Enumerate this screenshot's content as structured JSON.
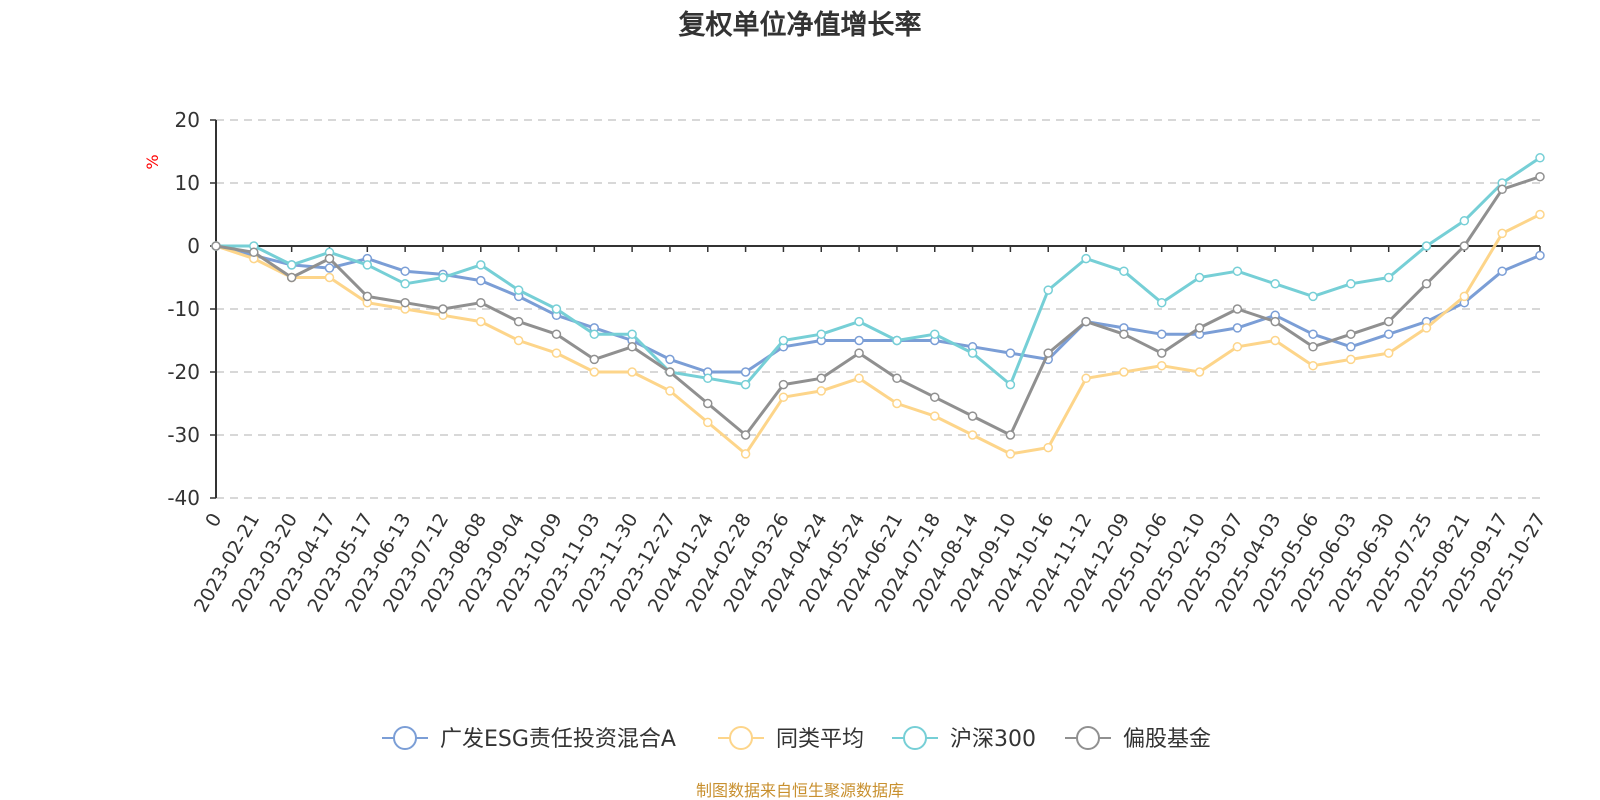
{
  "chart_data": {
    "type": "line",
    "title": "复权单位净值增长率",
    "ylabel": "%",
    "ylim": [
      -40,
      20
    ],
    "yticks": [
      -40,
      -30,
      -20,
      -10,
      0,
      10,
      20
    ],
    "x_tick_labels": [
      "0",
      "2023-02-21",
      "2023-03-20",
      "2023-04-17",
      "2023-05-17",
      "2023-06-13",
      "2023-07-12",
      "2023-08-08",
      "2023-09-04",
      "2023-10-09",
      "2023-11-03",
      "2023-11-30",
      "2023-12-27",
      "2024-01-24",
      "2024-02-28",
      "2024-03-26",
      "2024-04-24",
      "2024-05-24",
      "2024-06-21",
      "2024-07-18",
      "2024-08-14",
      "2024-09-10",
      "2024-10-16",
      "2024-11-12",
      "2024-12-09",
      "2025-01-06",
      "2025-02-10",
      "2025-03-07",
      "2025-04-03",
      "2025-05-06",
      "2025-06-03",
      "2025-06-30",
      "2025-07-25",
      "2025-08-21",
      "2025-09-17",
      "2025-10-27"
    ],
    "grid": true,
    "legend_position": "bottom",
    "series": [
      {
        "name": "广发ESG责任投资混合A",
        "color": "#7b9ed6",
        "values": [
          0,
          -1.5,
          -3,
          -3.5,
          -2,
          -4,
          -4.5,
          -5.5,
          -8,
          -11,
          -13,
          -15,
          -18,
          -20,
          -20,
          -16,
          -15,
          -15,
          -15,
          -15,
          -16,
          -17,
          -18,
          -12,
          -13,
          -14,
          -14,
          -13,
          -11,
          -14,
          -16,
          -14,
          -12,
          -9,
          -4,
          -1.5
        ]
      },
      {
        "name": "同类平均",
        "color": "#fdd58a",
        "values": [
          0,
          -2,
          -5,
          -5,
          -9,
          -10,
          -11,
          -12,
          -15,
          -17,
          -20,
          -20,
          -23,
          -28,
          -33,
          -24,
          -23,
          -21,
          -25,
          -27,
          -30,
          -33,
          -32,
          -21,
          -20,
          -19,
          -20,
          -16,
          -15,
          -19,
          -18,
          -17,
          -13,
          -8,
          2,
          5
        ]
      },
      {
        "name": "沪深300",
        "color": "#76cfd6",
        "values": [
          0,
          0,
          -3,
          -1,
          -3,
          -6,
          -5,
          -3,
          -7,
          -10,
          -14,
          -14,
          -20,
          -21,
          -22,
          -15,
          -14,
          -12,
          -15,
          -14,
          -17,
          -22,
          -7,
          -2,
          -4,
          -9,
          -5,
          -4,
          -6,
          -8,
          -6,
          -5,
          0,
          4,
          10,
          14
        ]
      },
      {
        "name": "偏股基金",
        "color": "#909090",
        "values": [
          0,
          -1,
          -5,
          -2,
          -8,
          -9,
          -10,
          -9,
          -12,
          -14,
          -18,
          -16,
          -20,
          -25,
          -30,
          -22,
          -21,
          -17,
          -21,
          -24,
          -27,
          -30,
          -17,
          -12,
          -14,
          -17,
          -13,
          -10,
          -12,
          -16,
          -14,
          -12,
          -6,
          0,
          9,
          11
        ]
      }
    ],
    "source": "制图数据来自恒生聚源数据库"
  }
}
